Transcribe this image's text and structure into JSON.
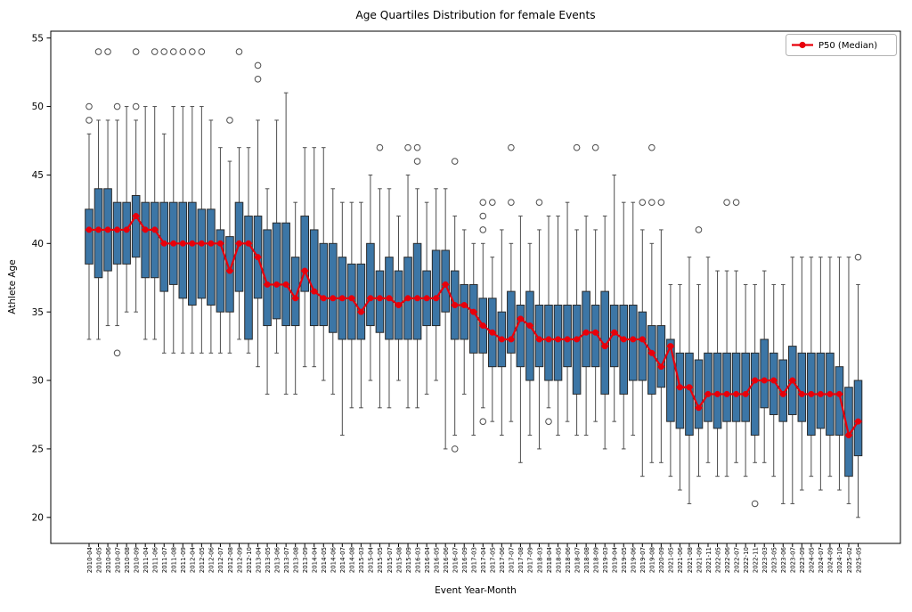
{
  "chart_data": {
    "type": "box",
    "title": "Age Quartiles Distribution for female Events",
    "xlabel": "Event Year-Month",
    "ylabel": "Athlete Age",
    "ylim": [
      18.1,
      55.5
    ],
    "yticks": [
      20,
      25,
      30,
      35,
      40,
      45,
      50,
      55
    ],
    "grid": false,
    "legend": {
      "position": "upper right",
      "entries": [
        {
          "label": "P50 (Median)",
          "color": "#e8000b",
          "marker": "line-with-dot"
        }
      ]
    },
    "colors": {
      "box_fill": "#3c76a6",
      "box_edge": "#2a2a2a",
      "whisker": "#4d4d4d",
      "flier": "#4d4d4d",
      "median_series": "#e8000b",
      "spine": "#000000"
    },
    "categories": [
      "2010-04",
      "2010-05",
      "2010-06",
      "2010-07",
      "2010-08",
      "2010-09",
      "2011-04",
      "2011-06",
      "2011-07",
      "2011-08",
      "2011-09",
      "2012-04",
      "2012-05",
      "2012-06",
      "2012-07",
      "2012-08",
      "2012-09",
      "2012-10",
      "2013-04",
      "2013-05",
      "2013-06",
      "2013-07",
      "2013-08",
      "2013-09",
      "2014-04",
      "2014-05",
      "2014-06",
      "2014-07",
      "2014-08",
      "2015-03",
      "2015-04",
      "2015-05",
      "2015-07",
      "2015-08",
      "2015-09",
      "2016-03",
      "2016-04",
      "2016-05",
      "2016-06",
      "2016-07",
      "2016-09",
      "2017-03",
      "2017-04",
      "2017-05",
      "2017-06",
      "2017-07",
      "2017-08",
      "2017-09",
      "2018-03",
      "2018-04",
      "2018-05",
      "2018-06",
      "2018-07",
      "2018-08",
      "2018-09",
      "2019-03",
      "2019-04",
      "2019-05",
      "2019-06",
      "2019-07",
      "2019-08",
      "2020-09",
      "2021-05",
      "2021-06",
      "2021-08",
      "2021-09",
      "2021-11",
      "2022-05",
      "2022-06",
      "2022-07",
      "2022-10",
      "2022-11",
      "2023-03",
      "2023-05",
      "2023-06",
      "2023-07",
      "2023-09",
      "2024-05",
      "2024-07",
      "2024-09",
      "2024-10",
      "2025-02",
      "2025-05"
    ],
    "series": [
      {
        "name": "P50 (Median)",
        "values": [
          41,
          41,
          41,
          41,
          41,
          42,
          41,
          41,
          40,
          40,
          40,
          40,
          40,
          40,
          40,
          38,
          40,
          40,
          39,
          37,
          37,
          37,
          36,
          38,
          36.5,
          36,
          36,
          36,
          36,
          35,
          36,
          36,
          36,
          35.5,
          36,
          36,
          36,
          36,
          37,
          35.5,
          35.5,
          35,
          34,
          33.5,
          33,
          33,
          34.5,
          34,
          33,
          33,
          33,
          33,
          33,
          33.5,
          33.5,
          32.5,
          33.5,
          33,
          33,
          33,
          32,
          31,
          32.5,
          29.5,
          29.5,
          28,
          29,
          29,
          29,
          29,
          29,
          30,
          30,
          30,
          29,
          30,
          29,
          29,
          29,
          29,
          29,
          26,
          27
        ]
      }
    ],
    "boxes": [
      {
        "label": "2010-04",
        "whislo": 33,
        "q1": 38.5,
        "med": 41,
        "q3": 42.5,
        "whishi": 48,
        "fliers": [
          49,
          50
        ]
      },
      {
        "label": "2010-05",
        "whislo": 33,
        "q1": 37.5,
        "med": 41,
        "q3": 44,
        "whishi": 49,
        "fliers": [
          54
        ]
      },
      {
        "label": "2010-06",
        "whislo": 34,
        "q1": 38,
        "med": 41,
        "q3": 44,
        "whishi": 49,
        "fliers": [
          54
        ]
      },
      {
        "label": "2010-07",
        "whislo": 34,
        "q1": 38.5,
        "med": 41,
        "q3": 43,
        "whishi": 49,
        "fliers": [
          32,
          50
        ]
      },
      {
        "label": "2010-08",
        "whislo": 35,
        "q1": 38.5,
        "med": 41,
        "q3": 43,
        "whishi": 50,
        "fliers": []
      },
      {
        "label": "2010-09",
        "whislo": 35,
        "q1": 39,
        "med": 42,
        "q3": 43.5,
        "whishi": 49,
        "fliers": [
          50,
          54
        ]
      },
      {
        "label": "2011-04",
        "whislo": 33,
        "q1": 37.5,
        "med": 41,
        "q3": 43,
        "whishi": 50,
        "fliers": []
      },
      {
        "label": "2011-06",
        "whislo": 33,
        "q1": 37.5,
        "med": 41,
        "q3": 43,
        "whishi": 50,
        "fliers": [
          54
        ]
      },
      {
        "label": "2011-07",
        "whislo": 32,
        "q1": 36.5,
        "med": 40,
        "q3": 43,
        "whishi": 48,
        "fliers": [
          54
        ]
      },
      {
        "label": "2011-08",
        "whislo": 32,
        "q1": 37,
        "med": 40,
        "q3": 43,
        "whishi": 50,
        "fliers": [
          54
        ]
      },
      {
        "label": "2011-09",
        "whislo": 32,
        "q1": 36,
        "med": 40,
        "q3": 43,
        "whishi": 50,
        "fliers": [
          54
        ]
      },
      {
        "label": "2012-04",
        "whislo": 32,
        "q1": 35.5,
        "med": 40,
        "q3": 43,
        "whishi": 50,
        "fliers": [
          54
        ]
      },
      {
        "label": "2012-05",
        "whislo": 32,
        "q1": 36,
        "med": 40,
        "q3": 42.5,
        "whishi": 50,
        "fliers": [
          54
        ]
      },
      {
        "label": "2012-06",
        "whislo": 32,
        "q1": 35.5,
        "med": 40,
        "q3": 42.5,
        "whishi": 49,
        "fliers": []
      },
      {
        "label": "2012-07",
        "whislo": 32,
        "q1": 35,
        "med": 40,
        "q3": 41,
        "whishi": 47,
        "fliers": []
      },
      {
        "label": "2012-08",
        "whislo": 32,
        "q1": 35,
        "med": 38,
        "q3": 40.5,
        "whishi": 46,
        "fliers": [
          49
        ]
      },
      {
        "label": "2012-09",
        "whislo": 33,
        "q1": 36.5,
        "med": 40,
        "q3": 43,
        "whishi": 47,
        "fliers": [
          54
        ]
      },
      {
        "label": "2012-10",
        "whislo": 32,
        "q1": 33,
        "med": 40,
        "q3": 42,
        "whishi": 47,
        "fliers": []
      },
      {
        "label": "2013-04",
        "whislo": 31,
        "q1": 36,
        "med": 39,
        "q3": 42,
        "whishi": 49,
        "fliers": [
          52,
          53
        ]
      },
      {
        "label": "2013-05",
        "whislo": 29,
        "q1": 34,
        "med": 37,
        "q3": 41,
        "whishi": 44,
        "fliers": []
      },
      {
        "label": "2013-06",
        "whislo": 32,
        "q1": 34.5,
        "med": 37,
        "q3": 41.5,
        "whishi": 49,
        "fliers": []
      },
      {
        "label": "2013-07",
        "whislo": 29,
        "q1": 34,
        "med": 37,
        "q3": 41.5,
        "whishi": 51,
        "fliers": []
      },
      {
        "label": "2013-08",
        "whislo": 29,
        "q1": 34,
        "med": 36,
        "q3": 39,
        "whishi": 43,
        "fliers": []
      },
      {
        "label": "2013-09",
        "whislo": 31,
        "q1": 36.5,
        "med": 38,
        "q3": 42,
        "whishi": 47,
        "fliers": []
      },
      {
        "label": "2014-04",
        "whislo": 31,
        "q1": 34,
        "med": 36.5,
        "q3": 41,
        "whishi": 47,
        "fliers": []
      },
      {
        "label": "2014-05",
        "whislo": 30,
        "q1": 34,
        "med": 36,
        "q3": 40,
        "whishi": 47,
        "fliers": []
      },
      {
        "label": "2014-06",
        "whislo": 29,
        "q1": 33.5,
        "med": 36,
        "q3": 40,
        "whishi": 44,
        "fliers": []
      },
      {
        "label": "2014-07",
        "whislo": 26,
        "q1": 33,
        "med": 36,
        "q3": 39,
        "whishi": 43,
        "fliers": []
      },
      {
        "label": "2014-08",
        "whislo": 28,
        "q1": 33,
        "med": 36,
        "q3": 38.5,
        "whishi": 43,
        "fliers": []
      },
      {
        "label": "2015-03",
        "whislo": 28,
        "q1": 33,
        "med": 35,
        "q3": 38.5,
        "whishi": 43,
        "fliers": []
      },
      {
        "label": "2015-04",
        "whislo": 30,
        "q1": 34,
        "med": 36,
        "q3": 40,
        "whishi": 45,
        "fliers": []
      },
      {
        "label": "2015-05",
        "whislo": 28,
        "q1": 33.5,
        "med": 36,
        "q3": 38,
        "whishi": 44,
        "fliers": [
          47
        ]
      },
      {
        "label": "2015-07",
        "whislo": 28,
        "q1": 33,
        "med": 36,
        "q3": 39,
        "whishi": 44,
        "fliers": []
      },
      {
        "label": "2015-08",
        "whislo": 30,
        "q1": 33,
        "med": 35.5,
        "q3": 38,
        "whishi": 42,
        "fliers": []
      },
      {
        "label": "2015-09",
        "whislo": 28,
        "q1": 33,
        "med": 36,
        "q3": 39,
        "whishi": 45,
        "fliers": [
          47
        ]
      },
      {
        "label": "2016-03",
        "whislo": 28,
        "q1": 33,
        "med": 36,
        "q3": 40,
        "whishi": 44,
        "fliers": [
          46,
          47
        ]
      },
      {
        "label": "2016-04",
        "whislo": 29,
        "q1": 34,
        "med": 36,
        "q3": 38,
        "whishi": 43,
        "fliers": []
      },
      {
        "label": "2016-05",
        "whislo": 30,
        "q1": 34,
        "med": 36,
        "q3": 39.5,
        "whishi": 44,
        "fliers": []
      },
      {
        "label": "2016-06",
        "whislo": 25,
        "q1": 35,
        "med": 37,
        "q3": 39.5,
        "whishi": 44,
        "fliers": []
      },
      {
        "label": "2016-07",
        "whislo": 26,
        "q1": 33,
        "med": 35.5,
        "q3": 38,
        "whishi": 42,
        "fliers": [
          25,
          46
        ]
      },
      {
        "label": "2016-09",
        "whislo": 29,
        "q1": 33,
        "med": 35.5,
        "q3": 37,
        "whishi": 41,
        "fliers": []
      },
      {
        "label": "2017-03",
        "whislo": 26,
        "q1": 32,
        "med": 35,
        "q3": 37,
        "whishi": 40,
        "fliers": []
      },
      {
        "label": "2017-04",
        "whislo": 28,
        "q1": 32,
        "med": 34,
        "q3": 36,
        "whishi": 40,
        "fliers": [
          27,
          41,
          42,
          43
        ]
      },
      {
        "label": "2017-05",
        "whislo": 27,
        "q1": 31,
        "med": 33.5,
        "q3": 36,
        "whishi": 39,
        "fliers": [
          43
        ]
      },
      {
        "label": "2017-06",
        "whislo": 26,
        "q1": 31,
        "med": 33,
        "q3": 35,
        "whishi": 41,
        "fliers": []
      },
      {
        "label": "2017-07",
        "whislo": 27,
        "q1": 32,
        "med": 33,
        "q3": 36.5,
        "whishi": 40,
        "fliers": [
          43,
          47
        ]
      },
      {
        "label": "2017-08",
        "whislo": 24,
        "q1": 31,
        "med": 34.5,
        "q3": 35.5,
        "whishi": 42,
        "fliers": []
      },
      {
        "label": "2017-09",
        "whislo": 26,
        "q1": 30,
        "med": 34,
        "q3": 36.5,
        "whishi": 40,
        "fliers": []
      },
      {
        "label": "2018-03",
        "whislo": 25,
        "q1": 31,
        "med": 33,
        "q3": 35.5,
        "whishi": 41,
        "fliers": [
          43
        ]
      },
      {
        "label": "2018-04",
        "whislo": 28,
        "q1": 30,
        "med": 33,
        "q3": 35.5,
        "whishi": 42,
        "fliers": [
          27
        ]
      },
      {
        "label": "2018-05",
        "whislo": 26,
        "q1": 30,
        "med": 33,
        "q3": 35.5,
        "whishi": 42,
        "fliers": []
      },
      {
        "label": "2018-06",
        "whislo": 27,
        "q1": 31,
        "med": 33,
        "q3": 35.5,
        "whishi": 43,
        "fliers": []
      },
      {
        "label": "2018-07",
        "whislo": 26,
        "q1": 29,
        "med": 33,
        "q3": 35.5,
        "whishi": 41,
        "fliers": [
          47
        ]
      },
      {
        "label": "2018-08",
        "whislo": 26,
        "q1": 31,
        "med": 33.5,
        "q3": 36.5,
        "whishi": 42,
        "fliers": []
      },
      {
        "label": "2018-09",
        "whislo": 27,
        "q1": 31,
        "med": 33.5,
        "q3": 35.5,
        "whishi": 41,
        "fliers": [
          47
        ]
      },
      {
        "label": "2019-03",
        "whislo": 25,
        "q1": 29,
        "med": 32.5,
        "q3": 36.5,
        "whishi": 42,
        "fliers": []
      },
      {
        "label": "2019-04",
        "whislo": 27,
        "q1": 31,
        "med": 33.5,
        "q3": 35.5,
        "whishi": 45,
        "fliers": []
      },
      {
        "label": "2019-05",
        "whislo": 25,
        "q1": 29,
        "med": 33,
        "q3": 35.5,
        "whishi": 43,
        "fliers": []
      },
      {
        "label": "2019-06",
        "whislo": 26,
        "q1": 30,
        "med": 33,
        "q3": 35.5,
        "whishi": 43,
        "fliers": []
      },
      {
        "label": "2019-07",
        "whislo": 23,
        "q1": 30,
        "med": 33,
        "q3": 35,
        "whishi": 41,
        "fliers": [
          43
        ]
      },
      {
        "label": "2019-08",
        "whislo": 24,
        "q1": 29,
        "med": 32,
        "q3": 34,
        "whishi": 40,
        "fliers": [
          43,
          47
        ]
      },
      {
        "label": "2020-09",
        "whislo": 24,
        "q1": 29.5,
        "med": 31,
        "q3": 34,
        "whishi": 41,
        "fliers": [
          43
        ]
      },
      {
        "label": "2021-05",
        "whislo": 23,
        "q1": 27,
        "med": 32.5,
        "q3": 33,
        "whishi": 37,
        "fliers": []
      },
      {
        "label": "2021-06",
        "whislo": 22,
        "q1": 26.5,
        "med": 29.5,
        "q3": 32,
        "whishi": 37,
        "fliers": []
      },
      {
        "label": "2021-08",
        "whislo": 21,
        "q1": 26,
        "med": 29.5,
        "q3": 32,
        "whishi": 39,
        "fliers": []
      },
      {
        "label": "2021-09",
        "whislo": 23,
        "q1": 26.5,
        "med": 28,
        "q3": 31.5,
        "whishi": 37,
        "fliers": [
          41
        ]
      },
      {
        "label": "2021-11",
        "whislo": 24,
        "q1": 27,
        "med": 29,
        "q3": 32,
        "whishi": 39,
        "fliers": []
      },
      {
        "label": "2022-05",
        "whislo": 23,
        "q1": 26.5,
        "med": 29,
        "q3": 32,
        "whishi": 38,
        "fliers": []
      },
      {
        "label": "2022-06",
        "whislo": 23,
        "q1": 27,
        "med": 29,
        "q3": 32,
        "whishi": 38,
        "fliers": [
          43
        ]
      },
      {
        "label": "2022-07",
        "whislo": 24,
        "q1": 27,
        "med": 29,
        "q3": 32,
        "whishi": 38,
        "fliers": [
          43
        ]
      },
      {
        "label": "2022-10",
        "whislo": 23,
        "q1": 27,
        "med": 29,
        "q3": 32,
        "whishi": 37,
        "fliers": []
      },
      {
        "label": "2022-11",
        "whislo": 24,
        "q1": 26,
        "med": 30,
        "q3": 32,
        "whishi": 37,
        "fliers": [
          21
        ]
      },
      {
        "label": "2023-03",
        "whislo": 24,
        "q1": 28,
        "med": 30,
        "q3": 33,
        "whishi": 38,
        "fliers": []
      },
      {
        "label": "2023-05",
        "whislo": 23,
        "q1": 27.5,
        "med": 30,
        "q3": 32,
        "whishi": 37,
        "fliers": []
      },
      {
        "label": "2023-06",
        "whislo": 21,
        "q1": 27,
        "med": 29,
        "q3": 31.5,
        "whishi": 37,
        "fliers": []
      },
      {
        "label": "2023-07",
        "whislo": 21,
        "q1": 27.5,
        "med": 30,
        "q3": 32.5,
        "whishi": 39,
        "fliers": []
      },
      {
        "label": "2023-09",
        "whislo": 22,
        "q1": 27,
        "med": 29,
        "q3": 32,
        "whishi": 39,
        "fliers": []
      },
      {
        "label": "2024-05",
        "whislo": 23,
        "q1": 26,
        "med": 29,
        "q3": 32,
        "whishi": 39,
        "fliers": []
      },
      {
        "label": "2024-07",
        "whislo": 22,
        "q1": 26.5,
        "med": 29,
        "q3": 32,
        "whishi": 39,
        "fliers": []
      },
      {
        "label": "2024-09",
        "whislo": 23,
        "q1": 26,
        "med": 29,
        "q3": 32,
        "whishi": 39,
        "fliers": []
      },
      {
        "label": "2024-10",
        "whislo": 22,
        "q1": 26,
        "med": 29,
        "q3": 31,
        "whishi": 39,
        "fliers": []
      },
      {
        "label": "2025-02",
        "whislo": 21,
        "q1": 23,
        "med": 26,
        "q3": 29.5,
        "whishi": 39,
        "fliers": []
      },
      {
        "label": "2025-05",
        "whislo": 20,
        "q1": 24.5,
        "med": 27,
        "q3": 30,
        "whishi": 37,
        "fliers": [
          39
        ]
      }
    ]
  }
}
